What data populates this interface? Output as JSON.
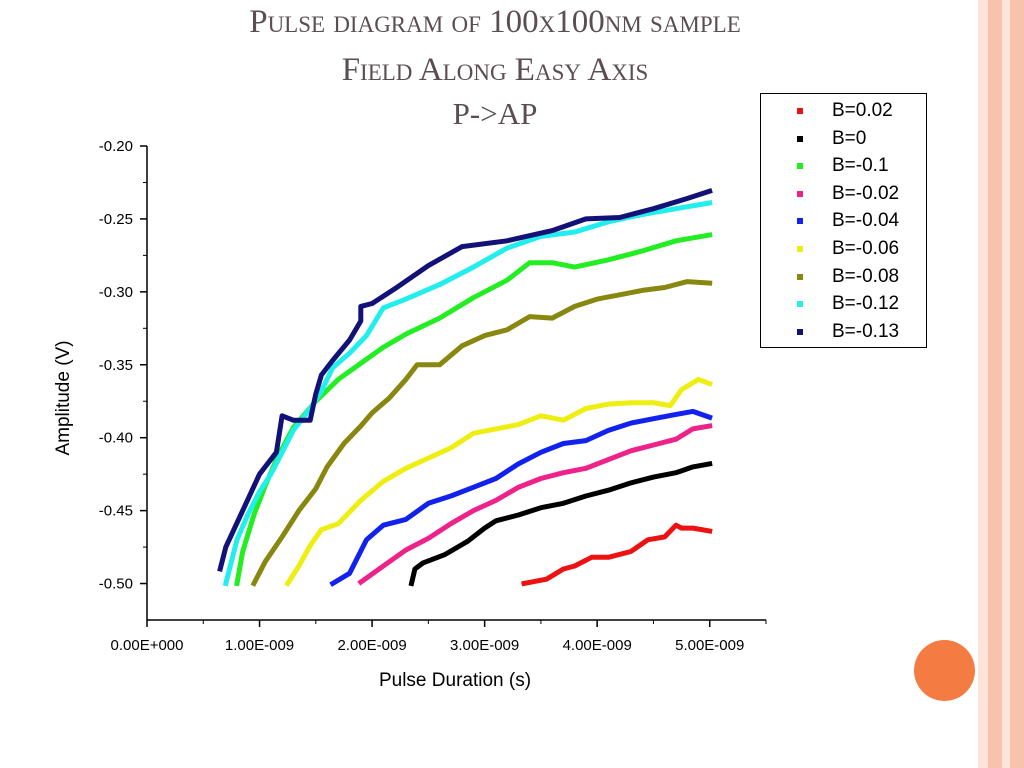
{
  "page": {
    "title_line1": "Pulse diagram of 100x100nm sample",
    "title_line2": "Field Along Easy Axis",
    "title_line3": "P->AP",
    "accent_circle_color": "#f47c42",
    "stripe_colors": [
      "#f9c2ad",
      "#fde3da"
    ]
  },
  "chart_data": {
    "type": "line",
    "title": "",
    "xlabel": "Pulse Duration (s)",
    "ylabel": "Amplitude (V)",
    "xlim": [
      0,
      5.5e-09
    ],
    "ylim": [
      -0.525,
      -0.2
    ],
    "x_ticks": [
      0,
      1e-09,
      2e-09,
      3e-09,
      4e-09,
      5e-09
    ],
    "x_tick_labels": [
      "0.00E+000",
      "1.00E-009",
      "2.00E-009",
      "3.00E-009",
      "4.00E-009",
      "5.00E-009"
    ],
    "y_ticks": [
      -0.5,
      -0.45,
      -0.4,
      -0.35,
      -0.3,
      -0.25,
      -0.2
    ],
    "y_tick_labels": [
      "-0.50",
      "-0.45",
      "-0.40",
      "-0.35",
      "-0.30",
      "-0.25",
      "-0.20"
    ],
    "grid": false,
    "legend_position": "top-right",
    "series": [
      {
        "name": "B=0.02",
        "color": "#ee1111",
        "x": [
          3.35e-09,
          3.55e-09,
          3.7e-09,
          3.8e-09,
          3.95e-09,
          4.1e-09,
          4.3e-09,
          4.45e-09,
          4.6e-09,
          4.7e-09,
          4.75e-09,
          4.85e-09,
          5e-09
        ],
        "y": [
          -0.5,
          -0.497,
          -0.49,
          -0.488,
          -0.482,
          -0.482,
          -0.478,
          -0.47,
          -0.468,
          -0.46,
          -0.462,
          -0.462,
          -0.464
        ]
      },
      {
        "name": "B=0",
        "color": "#000000",
        "x": [
          2.35e-09,
          2.38e-09,
          2.45e-09,
          2.65e-09,
          2.85e-09,
          3e-09,
          3.1e-09,
          3.3e-09,
          3.5e-09,
          3.7e-09,
          3.9e-09,
          4.1e-09,
          4.3e-09,
          4.5e-09,
          4.7e-09,
          4.85e-09,
          5e-09
        ],
        "y": [
          -0.5,
          -0.49,
          -0.486,
          -0.48,
          -0.471,
          -0.462,
          -0.457,
          -0.453,
          -0.448,
          -0.445,
          -0.44,
          -0.436,
          -0.431,
          -0.427,
          -0.424,
          -0.42,
          -0.418
        ]
      },
      {
        "name": "B=-0.1",
        "color": "#22ee22",
        "x": [
          8e-10,
          8.5e-10,
          9.5e-10,
          1.05e-09,
          1.15e-09,
          1.3e-09,
          1.5e-09,
          1.7e-09,
          1.9e-09,
          2.1e-09,
          2.3e-09,
          2.6e-09,
          2.9e-09,
          3.2e-09,
          3.4e-09,
          3.6e-09,
          3.8e-09,
          4.1e-09,
          4.4e-09,
          4.7e-09,
          5e-09
        ],
        "y": [
          -0.5,
          -0.478,
          -0.453,
          -0.433,
          -0.415,
          -0.393,
          -0.375,
          -0.36,
          -0.349,
          -0.338,
          -0.329,
          -0.318,
          -0.304,
          -0.292,
          -0.28,
          -0.28,
          -0.283,
          -0.278,
          -0.272,
          -0.265,
          -0.261
        ]
      },
      {
        "name": "B=-0.02",
        "color": "#ee2288",
        "x": [
          1.9e-09,
          2.1e-09,
          2.3e-09,
          2.5e-09,
          2.7e-09,
          2.9e-09,
          3.1e-09,
          3.3e-09,
          3.5e-09,
          3.7e-09,
          3.9e-09,
          4.1e-09,
          4.3e-09,
          4.5e-09,
          4.7e-09,
          4.85e-09,
          5e-09
        ],
        "y": [
          -0.499,
          -0.488,
          -0.477,
          -0.469,
          -0.459,
          -0.45,
          -0.443,
          -0.434,
          -0.428,
          -0.424,
          -0.421,
          -0.415,
          -0.409,
          -0.405,
          -0.401,
          -0.394,
          -0.392
        ]
      },
      {
        "name": "B=-0.04",
        "color": "#1122ee",
        "x": [
          1.65e-09,
          1.8e-09,
          1.95e-09,
          2.1e-09,
          2.3e-09,
          2.5e-09,
          2.7e-09,
          2.9e-09,
          3.1e-09,
          3.3e-09,
          3.5e-09,
          3.7e-09,
          3.9e-09,
          4.1e-09,
          4.3e-09,
          4.5e-09,
          4.7e-09,
          4.85e-09,
          5e-09
        ],
        "y": [
          -0.5,
          -0.493,
          -0.47,
          -0.46,
          -0.456,
          -0.445,
          -0.44,
          -0.434,
          -0.428,
          -0.418,
          -0.41,
          -0.404,
          -0.402,
          -0.395,
          -0.39,
          -0.387,
          -0.384,
          -0.382,
          -0.386
        ]
      },
      {
        "name": "B=-0.06",
        "color": "#eeee11",
        "x": [
          1.25e-09,
          1.35e-09,
          1.45e-09,
          1.55e-09,
          1.7e-09,
          1.9e-09,
          2.1e-09,
          2.3e-09,
          2.5e-09,
          2.7e-09,
          2.9e-09,
          3.1e-09,
          3.3e-09,
          3.5e-09,
          3.7e-09,
          3.9e-09,
          4.1e-09,
          4.3e-09,
          4.5e-09,
          4.65e-09,
          4.75e-09,
          4.9e-09,
          5e-09
        ],
        "y": [
          -0.5,
          -0.488,
          -0.474,
          -0.463,
          -0.459,
          -0.443,
          -0.43,
          -0.421,
          -0.414,
          -0.407,
          -0.397,
          -0.394,
          -0.391,
          -0.385,
          -0.388,
          -0.38,
          -0.377,
          -0.376,
          -0.376,
          -0.378,
          -0.367,
          -0.36,
          -0.363
        ]
      },
      {
        "name": "B=-0.08",
        "color": "#888811",
        "x": [
          9.5e-10,
          1.05e-09,
          1.2e-09,
          1.35e-09,
          1.5e-09,
          1.6e-09,
          1.75e-09,
          1.9e-09,
          2e-09,
          2.15e-09,
          2.3e-09,
          2.4e-09,
          2.6e-09,
          2.8e-09,
          3e-09,
          3.2e-09,
          3.4e-09,
          3.6e-09,
          3.8e-09,
          4e-09,
          4.2e-09,
          4.4e-09,
          4.6e-09,
          4.8e-09,
          5e-09
        ],
        "y": [
          -0.5,
          -0.485,
          -0.468,
          -0.45,
          -0.435,
          -0.42,
          -0.404,
          -0.392,
          -0.383,
          -0.373,
          -0.36,
          -0.35,
          -0.35,
          -0.337,
          -0.33,
          -0.326,
          -0.317,
          -0.318,
          -0.31,
          -0.305,
          -0.302,
          -0.299,
          -0.297,
          -0.293,
          -0.294
        ]
      },
      {
        "name": "B=-0.12",
        "color": "#22eeee",
        "x": [
          7e-10,
          8e-10,
          9e-10,
          1e-09,
          1.1e-09,
          1.2e-09,
          1.3e-09,
          1.45e-09,
          1.55e-09,
          1.65e-09,
          1.8e-09,
          1.95e-09,
          2.1e-09,
          2.3e-09,
          2.6e-09,
          2.9e-09,
          3.2e-09,
          3.5e-09,
          3.8e-09,
          4.1e-09,
          4.4e-09,
          4.7e-09,
          5e-09
        ],
        "y": [
          -0.5,
          -0.47,
          -0.452,
          -0.437,
          -0.425,
          -0.41,
          -0.395,
          -0.38,
          -0.368,
          -0.352,
          -0.342,
          -0.33,
          -0.311,
          -0.305,
          -0.295,
          -0.283,
          -0.27,
          -0.262,
          -0.259,
          -0.252,
          -0.247,
          -0.243,
          -0.239
        ]
      },
      {
        "name": "B=-0.13",
        "color": "#111177",
        "x": [
          6.5e-10,
          7e-10,
          8.5e-10,
          1e-09,
          1.15e-09,
          1.2e-09,
          1.3e-09,
          1.45e-09,
          1.5e-09,
          1.55e-09,
          1.65e-09,
          1.8e-09,
          1.9e-09,
          1.9e-09,
          2e-09,
          2.2e-09,
          2.5e-09,
          2.8e-09,
          3.2e-09,
          3.6e-09,
          3.9e-09,
          4.2e-09,
          4.5e-09,
          4.8e-09,
          5e-09
        ],
        "y": [
          -0.49,
          -0.475,
          -0.45,
          -0.425,
          -0.41,
          -0.385,
          -0.388,
          -0.388,
          -0.37,
          -0.357,
          -0.347,
          -0.333,
          -0.32,
          -0.31,
          -0.308,
          -0.298,
          -0.282,
          -0.269,
          -0.265,
          -0.258,
          -0.25,
          -0.249,
          -0.243,
          -0.236,
          -0.231
        ]
      }
    ]
  }
}
